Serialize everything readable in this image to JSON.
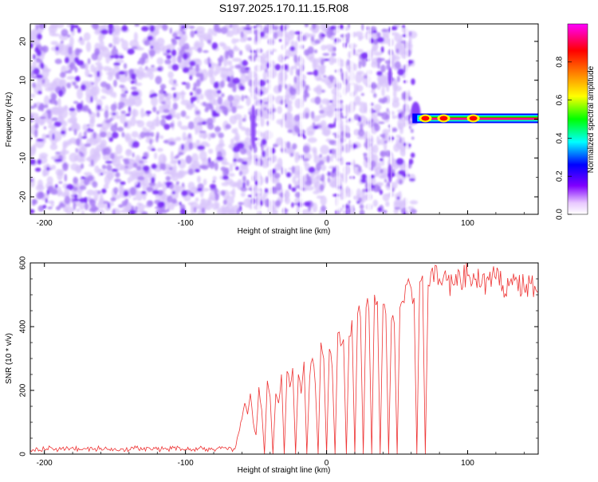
{
  "title": "S197.2025.170.11.15.R08",
  "spectrogram": {
    "xlabel": "Height of straight line (km)",
    "ylabel": "Frequency (Hz)",
    "xlim": [
      -210,
      150
    ],
    "ylim": [
      -24.5,
      24.5
    ],
    "xticks": [
      -200,
      -100,
      0,
      100
    ],
    "yticks": [
      -20,
      -10,
      0,
      10,
      20
    ],
    "noise_region_km": [
      -210,
      62
    ],
    "noise_color": "#7b2ff7",
    "signal": {
      "start_km": 62,
      "end_km": 150,
      "freq_hz": 0,
      "hot_spots_km": [
        70,
        83,
        104
      ]
    },
    "vertical_streaks_km": [
      -52,
      -48,
      -40,
      -30,
      -18,
      8,
      13,
      18,
      30,
      46,
      57
    ]
  },
  "colorbar": {
    "label": "Normalized spectral amplitude",
    "range": [
      0,
      1
    ],
    "ticks": [
      0.0,
      0.2,
      0.4,
      0.6,
      0.8
    ],
    "tick_labels": [
      "0.0",
      "0.2",
      "0.4",
      "0.6",
      "0.8"
    ],
    "colormap": [
      "#ffffff",
      "#8000ff",
      "#0000ff",
      "#00ffff",
      "#00ff00",
      "#ffff00",
      "#ff8000",
      "#ff0000",
      "#ff00ff"
    ]
  },
  "chart_data": {
    "type": "line",
    "xlabel": "Height of straight line (km)",
    "ylabel": "SNR (10 * v/v)",
    "xlim": [
      -210,
      150
    ],
    "ylim": [
      0,
      600
    ],
    "xticks": [
      -200,
      -100,
      0,
      100
    ],
    "yticks": [
      0,
      200,
      400,
      600
    ],
    "line_color": "#ee3333",
    "series": [
      {
        "x": [
          -210,
          -205,
          -200,
          -195,
          -190,
          -185,
          -180,
          -175,
          -170,
          -165,
          -160,
          -155,
          -150,
          -145,
          -140,
          -135,
          -130,
          -125,
          -120,
          -115,
          -110,
          -105,
          -100,
          -95,
          -90,
          -85,
          -80,
          -75,
          -70,
          -65,
          -60,
          -58,
          -56,
          -54,
          -52,
          -50,
          -48,
          -46,
          -44,
          -42,
          -40,
          -38,
          -36,
          -34,
          -32,
          -30,
          -28,
          -26,
          -24,
          -22,
          -20,
          -18,
          -16,
          -14,
          -12,
          -10,
          -8,
          -6,
          -4,
          -2,
          0,
          2,
          4,
          6,
          8,
          10,
          12,
          14,
          16,
          18,
          20,
          22,
          24,
          26,
          28,
          30,
          32,
          34,
          36,
          38,
          40,
          42,
          44,
          46,
          48,
          50,
          52,
          54,
          56,
          58,
          60,
          62,
          64,
          66,
          68,
          70,
          72,
          74,
          76,
          78,
          80,
          85,
          90,
          95,
          100,
          105,
          110,
          115,
          120,
          125,
          130,
          135,
          140,
          145,
          150
        ],
        "y": [
          12,
          18,
          15,
          20,
          14,
          16,
          22,
          13,
          17,
          15,
          19,
          14,
          18,
          16,
          13,
          20,
          15,
          17,
          14,
          18,
          16,
          21,
          15,
          14,
          19,
          16,
          15,
          17,
          14,
          16,
          110,
          160,
          125,
          190,
          100,
          60,
          210,
          140,
          0,
          230,
          180,
          0,
          190,
          160,
          250,
          0,
          260,
          210,
          270,
          0,
          250,
          190,
          290,
          0,
          240,
          300,
          220,
          0,
          350,
          300,
          0,
          330,
          270,
          0,
          380,
          340,
          360,
          0,
          370,
          420,
          0,
          440,
          430,
          0,
          460,
          450,
          0,
          500,
          480,
          0,
          470,
          440,
          0,
          420,
          410,
          0,
          460,
          480,
          530,
          550,
          520,
          490,
          0,
          540,
          560,
          0,
          530,
          570,
          540,
          590,
          550,
          545,
          530,
          540,
          560,
          548,
          535,
          545,
          550,
          530,
          540,
          545,
          520,
          535,
          510
        ]
      }
    ]
  }
}
